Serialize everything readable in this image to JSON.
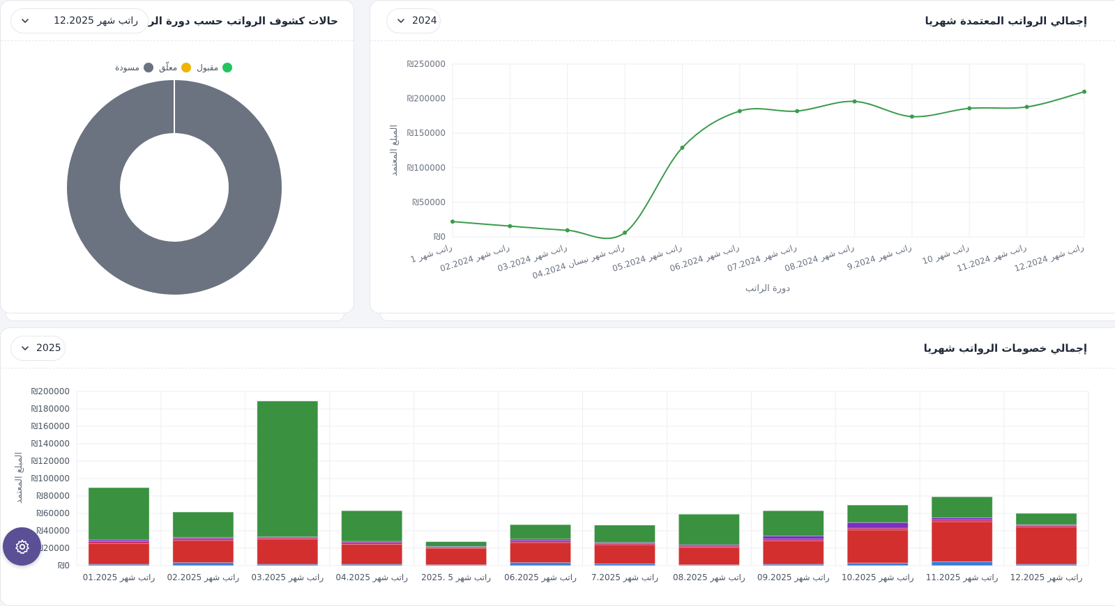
{
  "payroll_status": {
    "title": "حالات كشوف الرواتب حسب دورة الرواتب",
    "selected_cycle": "راتب شهر 12.2025",
    "legend": [
      {
        "label": "مسودة",
        "color": "#6b7280"
      },
      {
        "label": "معلّق",
        "color": "#f0b400"
      },
      {
        "label": "مقبول",
        "color": "#22c55e"
      }
    ]
  },
  "approved_monthly": {
    "title": "إجمالي الرواتب المعتمدة شهريا",
    "selected_year": "2024"
  },
  "deductions_monthly": {
    "title": "إجمالي خصومات الرواتب شهريا",
    "selected_year": "2025"
  },
  "chart_data": [
    {
      "type": "pie",
      "subtype": "donut",
      "title": "حالات كشوف الرواتب حسب دورة الرواتب",
      "labels": [
        "مسودة",
        "معلّق",
        "مقبول"
      ],
      "values": [
        100,
        0,
        0
      ],
      "colors": [
        "#6b7280",
        "#f0b400",
        "#22c55e"
      ]
    },
    {
      "type": "line",
      "title": "إجمالي الرواتب المعتمدة شهريا",
      "xlabel": "دورة الراتب",
      "ylabel": "المبلغ المعتمد",
      "ylim": [
        0,
        250000
      ],
      "yticks": [
        "₪0",
        "₪50000",
        "₪100000",
        "₪150000",
        "₪200000",
        "₪250000"
      ],
      "categories": [
        "راتب شهر 1",
        "راتب شهر 02.2024",
        "راتب شهر 03.2024",
        "راتب شهر نيسان 04.2024",
        "راتب شهر 05.2024",
        "راتب شهر 06.2024",
        "راتب شهر 07.2024",
        "راتب شهر 08.2024",
        "راتب شهر 9.2024",
        "راتب شهر 10",
        "راتب شهر 11.2024",
        "راتب شهر 12.2024"
      ],
      "values": [
        22000,
        15500,
        9500,
        6000,
        129000,
        182000,
        182000,
        196000,
        174000,
        186000,
        188000,
        210000
      ],
      "color": "#3a9c4b"
    },
    {
      "type": "bar",
      "stacked": true,
      "title": "إجمالي خصومات الرواتب شهريا",
      "ylabel": "المبلغ المعتمد",
      "ylim": [
        0,
        200000
      ],
      "yticks": [
        "₪0",
        "₪20000",
        "₪40000",
        "₪60000",
        "₪80000",
        "₪100000",
        "₪120000",
        "₪140000",
        "₪160000",
        "₪180000",
        "₪200000"
      ],
      "categories": [
        "راتب شهر 01.2025",
        "راتب شهر 02.2025",
        "راتب شهر 03.2025",
        "راتب شهر 04.2025",
        "راتب شهر 5 .2025",
        "راتب شهر 06.2025",
        "راتب شهر 7.2025",
        "راتب شهر 08.2025",
        "راتب شهر 09.2025",
        "راتب شهر 10.2025",
        "راتب شهر 11.2025",
        "راتب شهر 12.2025"
      ],
      "series": [
        {
          "name": "blue",
          "color": "#3b7dd8",
          "values": [
            1500,
            3500,
            1500,
            1500,
            1000,
            3500,
            2000,
            1000,
            1500,
            3000,
            4500,
            1500
          ]
        },
        {
          "name": "red",
          "color": "#d32f2f",
          "values": [
            24000,
            25500,
            29000,
            23000,
            19000,
            23000,
            22000,
            20000,
            27000,
            38000,
            46000,
            43000
          ]
        },
        {
          "name": "pink",
          "color": "#c2185b",
          "values": [
            2000,
            2000,
            1500,
            2000,
            1000,
            2000,
            1500,
            1500,
            2000,
            2000,
            2000,
            1500
          ]
        },
        {
          "name": "purple",
          "color": "#7b2fbe",
          "values": [
            2000,
            1500,
            1000,
            1500,
            1000,
            2000,
            1000,
            1500,
            3500,
            6500,
            2500,
            1000
          ]
        },
        {
          "name": "green",
          "color": "#3a9140",
          "values": [
            60000,
            29000,
            156000,
            35000,
            5500,
            16500,
            20000,
            35000,
            29000,
            20000,
            24000,
            13000
          ]
        }
      ]
    }
  ]
}
